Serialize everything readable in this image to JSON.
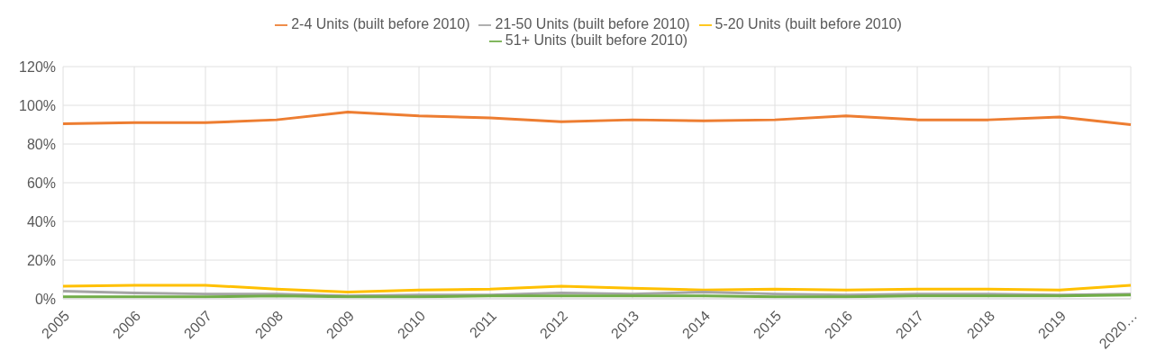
{
  "chart_data": {
    "type": "line",
    "categories": [
      "2005",
      "2006",
      "2007",
      "2008",
      "2009",
      "2010",
      "2011",
      "2012",
      "2013",
      "2014",
      "2015",
      "2016",
      "2017",
      "2018",
      "2019",
      "2020…"
    ],
    "series": [
      {
        "name": "2-4 Units (built before 2010)",
        "color": "#ed7d31",
        "values": [
          90.5,
          91,
          91,
          92.5,
          96.5,
          94.5,
          93.5,
          91.5,
          92.5,
          92,
          92.5,
          94.5,
          92.5,
          92.5,
          94,
          90
        ]
      },
      {
        "name": "5-20 Units  (built before 2010)",
        "color": "#ffc000",
        "values": [
          6.5,
          7,
          7,
          5,
          3.5,
          4.5,
          5,
          6.5,
          5.5,
          4.5,
          5,
          4.5,
          5,
          5,
          4.5,
          7
        ]
      },
      {
        "name": "21-50 Units  (built before 2010)",
        "color": "#a5a5a5",
        "values": [
          4,
          3,
          2.5,
          2.5,
          1.5,
          2,
          2,
          3,
          2.5,
          3.5,
          2.5,
          2,
          2.5,
          2.5,
          2,
          2.5
        ]
      },
      {
        "name": "51+ Units  (built before 2010)",
        "color": "#70ad47",
        "values": [
          1,
          1,
          1,
          1.5,
          1,
          1,
          1.5,
          1.5,
          1.5,
          1.5,
          1,
          1,
          1.5,
          1.5,
          1.5,
          2
        ]
      }
    ],
    "ylim": [
      0,
      120
    ],
    "yticks": [
      {
        "value": 0,
        "label": "0%"
      },
      {
        "value": 20,
        "label": "20%"
      },
      {
        "value": 40,
        "label": "40%"
      },
      {
        "value": 60,
        "label": "60%"
      },
      {
        "value": 80,
        "label": "80%"
      },
      {
        "value": 100,
        "label": "100%"
      },
      {
        "value": 120,
        "label": "120%"
      }
    ],
    "grid": true,
    "legend": "top",
    "marker": "none",
    "line_style": "solid"
  }
}
